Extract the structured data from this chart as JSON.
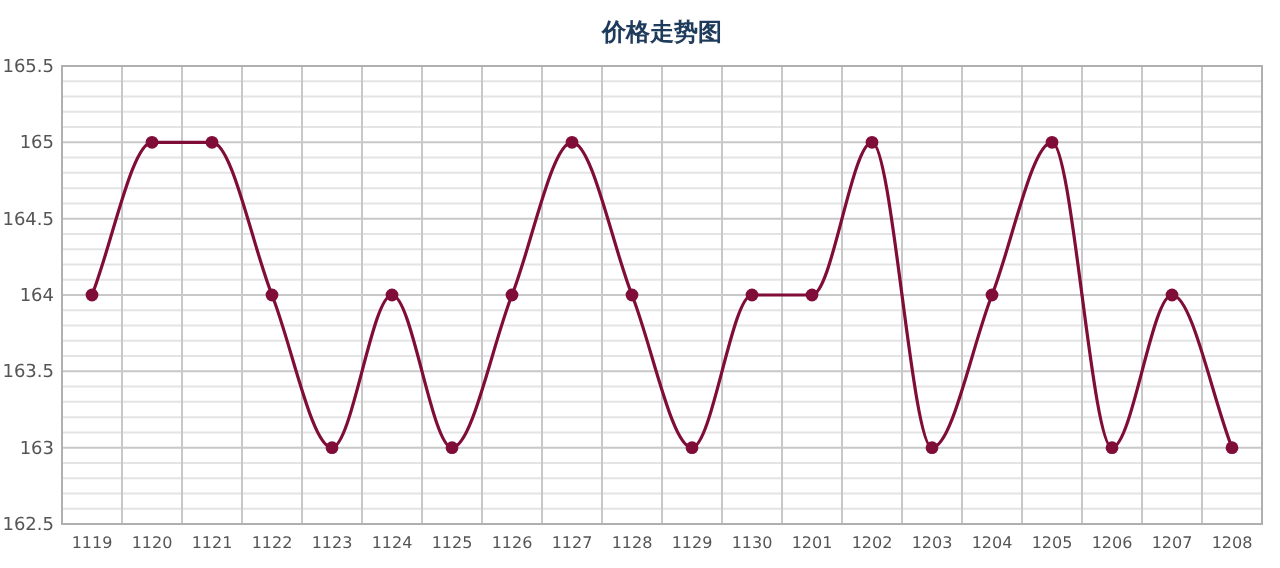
{
  "chart_data": {
    "type": "line",
    "title": "价格走势图",
    "categories": [
      "1119",
      "1120",
      "1121",
      "1122",
      "1123",
      "1124",
      "1125",
      "1126",
      "1127",
      "1128",
      "1129",
      "1130",
      "1201",
      "1202",
      "1203",
      "1204",
      "1205",
      "1206",
      "1207",
      "1208"
    ],
    "series": [
      {
        "color": "#7f0d37",
        "values": [
          164,
          165,
          165,
          164,
          163,
          164,
          163,
          164,
          165,
          164,
          163,
          164,
          164,
          165,
          163,
          164,
          165,
          163,
          164,
          163
        ]
      }
    ],
    "ylim": [
      162.5,
      165.5
    ],
    "yticks": [
      162.5,
      163,
      163.5,
      164,
      164.5,
      165,
      165.5
    ],
    "grid": true,
    "marker": "circle",
    "line_style": "solid"
  }
}
